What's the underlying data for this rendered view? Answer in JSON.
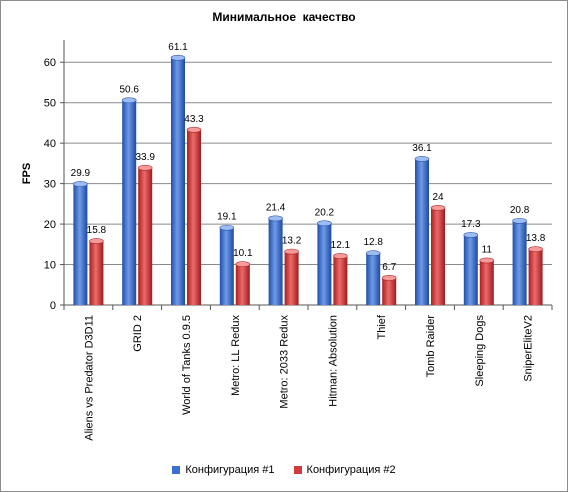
{
  "chart_data": {
    "type": "bar",
    "title": "Минимальное  качество",
    "ylabel": "FPS",
    "xlabel": "",
    "ylim": [
      0,
      65
    ],
    "yticks": [
      0,
      10,
      20,
      30,
      40,
      50,
      60
    ],
    "grid": true,
    "legend_position": "bottom",
    "categories": [
      "Aliens vs Predator D3D11",
      "GRID 2",
      "World of Tanks 0.9.5",
      "Metro: LL Redux",
      "Metro: 2033 Redux",
      "Hitman: Absolution",
      "Thief",
      "Tomb Raider",
      "Sleeping Dogs",
      "SniperEliteV2"
    ],
    "series": [
      {
        "name": "Конфигурация #1",
        "color": "#3b6fd1",
        "values": [
          29.9,
          50.6,
          61.1,
          19.1,
          21.4,
          20.2,
          12.8,
          36.1,
          17.3,
          20.8
        ]
      },
      {
        "name": "Конфигурация #2",
        "color": "#d23b3b",
        "values": [
          15.8,
          33.9,
          43.3,
          10.1,
          13.2,
          12.1,
          6.7,
          24,
          11,
          13.8
        ]
      }
    ]
  }
}
